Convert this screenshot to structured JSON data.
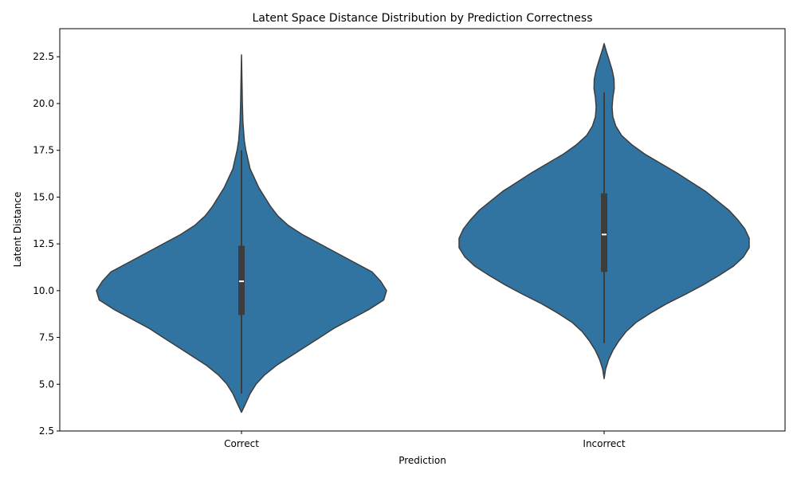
{
  "chart_data": {
    "type": "violin",
    "title": "Latent Space Distance Distribution by Prediction Correctness",
    "xlabel": "Prediction",
    "ylabel": "Latent Distance",
    "categories": [
      "Correct",
      "Incorrect"
    ],
    "ylim": [
      2.5,
      24.0
    ],
    "yticks": [
      2.5,
      5.0,
      7.5,
      10.0,
      12.5,
      15.0,
      17.5,
      20.0,
      22.5
    ],
    "ytick_labels": [
      "2.5",
      "5.0",
      "7.5",
      "10.0",
      "12.5",
      "15.0",
      "17.5",
      "20.0",
      "22.5"
    ],
    "fill_color": "#3274a1",
    "edge_color": "#3d3d3d",
    "violins": [
      {
        "category": "Correct",
        "median": 10.5,
        "q1": 8.7,
        "q3": 12.4,
        "whisker_low": 4.5,
        "whisker_high": 17.5,
        "density_profile": [
          [
            3.5,
            0.0
          ],
          [
            4.0,
            0.03
          ],
          [
            4.5,
            0.06
          ],
          [
            5.0,
            0.1
          ],
          [
            5.5,
            0.16
          ],
          [
            6.0,
            0.24
          ],
          [
            6.5,
            0.34
          ],
          [
            7.0,
            0.44
          ],
          [
            7.5,
            0.54
          ],
          [
            8.0,
            0.64
          ],
          [
            8.5,
            0.76
          ],
          [
            9.0,
            0.88
          ],
          [
            9.5,
            0.98
          ],
          [
            10.0,
            1.0
          ],
          [
            10.5,
            0.96
          ],
          [
            11.0,
            0.9
          ],
          [
            11.5,
            0.78
          ],
          [
            12.0,
            0.66
          ],
          [
            12.5,
            0.54
          ],
          [
            13.0,
            0.42
          ],
          [
            13.5,
            0.32
          ],
          [
            14.0,
            0.25
          ],
          [
            14.5,
            0.2
          ],
          [
            15.0,
            0.16
          ],
          [
            15.5,
            0.12
          ],
          [
            16.0,
            0.09
          ],
          [
            16.5,
            0.06
          ],
          [
            17.0,
            0.045
          ],
          [
            17.5,
            0.03
          ],
          [
            18.0,
            0.02
          ],
          [
            19.0,
            0.01
          ],
          [
            20.0,
            0.006
          ],
          [
            21.0,
            0.004
          ],
          [
            22.6,
            0.0
          ]
        ]
      },
      {
        "category": "Incorrect",
        "median": 13.0,
        "q1": 11.0,
        "q3": 15.2,
        "whisker_low": 7.2,
        "whisker_high": 20.6,
        "density_profile": [
          [
            5.3,
            0.0
          ],
          [
            5.8,
            0.01
          ],
          [
            6.3,
            0.03
          ],
          [
            6.8,
            0.06
          ],
          [
            7.3,
            0.1
          ],
          [
            7.8,
            0.15
          ],
          [
            8.3,
            0.22
          ],
          [
            8.8,
            0.32
          ],
          [
            9.3,
            0.43
          ],
          [
            9.8,
            0.56
          ],
          [
            10.3,
            0.68
          ],
          [
            10.8,
            0.79
          ],
          [
            11.3,
            0.89
          ],
          [
            11.8,
            0.96
          ],
          [
            12.3,
            1.0
          ],
          [
            12.8,
            1.0
          ],
          [
            13.3,
            0.97
          ],
          [
            13.8,
            0.92
          ],
          [
            14.3,
            0.86
          ],
          [
            14.8,
            0.78
          ],
          [
            15.3,
            0.7
          ],
          [
            15.8,
            0.6
          ],
          [
            16.3,
            0.5
          ],
          [
            16.8,
            0.39
          ],
          [
            17.3,
            0.28
          ],
          [
            17.8,
            0.19
          ],
          [
            18.3,
            0.12
          ],
          [
            18.8,
            0.08
          ],
          [
            19.3,
            0.06
          ],
          [
            19.8,
            0.055
          ],
          [
            20.3,
            0.06
          ],
          [
            20.8,
            0.07
          ],
          [
            21.3,
            0.068
          ],
          [
            21.8,
            0.055
          ],
          [
            22.3,
            0.035
          ],
          [
            22.8,
            0.015
          ],
          [
            23.2,
            0.0
          ]
        ]
      }
    ]
  }
}
